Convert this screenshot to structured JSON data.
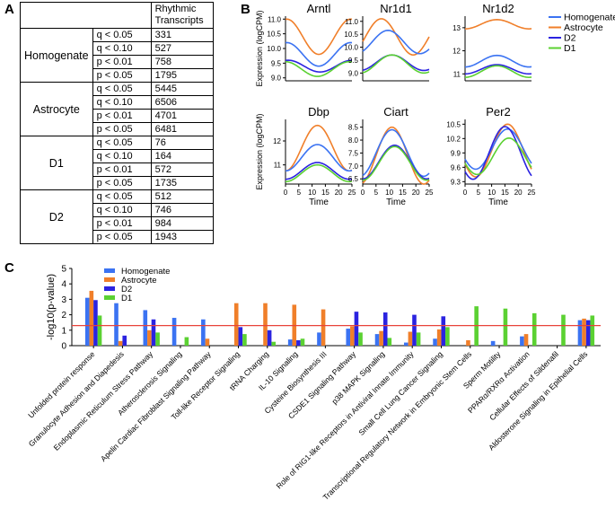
{
  "panels": {
    "a": "A",
    "b": "B",
    "c": "C"
  },
  "table": {
    "header": "Rhythmic Transcripts",
    "groups": [
      {
        "name": "Homogenate",
        "rows": [
          [
            "q < 0.05",
            "331"
          ],
          [
            "q < 0.10",
            "527"
          ],
          [
            "p < 0.01",
            "758"
          ],
          [
            "p < 0.05",
            "1795"
          ]
        ]
      },
      {
        "name": "Astrocyte",
        "rows": [
          [
            "q < 0.05",
            "5445"
          ],
          [
            "q < 0.10",
            "6506"
          ],
          [
            "p < 0.01",
            "4701"
          ],
          [
            "p < 0.05",
            "6481"
          ]
        ]
      },
      {
        "name": "D1",
        "rows": [
          [
            "q < 0.05",
            "76"
          ],
          [
            "q < 0.10",
            "164"
          ],
          [
            "p < 0.01",
            "572"
          ],
          [
            "p < 0.05",
            "1735"
          ]
        ]
      },
      {
        "name": "D2",
        "rows": [
          [
            "q < 0.05",
            "512"
          ],
          [
            "q < 0.10",
            "746"
          ],
          [
            "p < 0.01",
            "984"
          ],
          [
            "p < 0.05",
            "1943"
          ]
        ]
      }
    ]
  },
  "colors": {
    "Homogenate": "#3b73f2",
    "Astrocyte": "#f07f2a",
    "D2": "#2b23e0",
    "D1": "#5bd132",
    "threshold": "#e8433a"
  },
  "chart_data": [
    {
      "type": "line",
      "panel": "B",
      "ylabel": "Expression (logCPM)",
      "xlabel": "Time",
      "xticks": [
        0,
        5,
        10,
        15,
        20,
        25
      ],
      "xlim": [
        0,
        25
      ],
      "legend": {
        "position": "top-right",
        "entries": [
          "Homogenate",
          "Astrocyte",
          "D2",
          "D1"
        ]
      },
      "note": "series values are cosinor curves: y = mesor + amp * cos(2*pi*(t - peak)/24)",
      "subplots": [
        {
          "title": "Arntl",
          "ylim": [
            8.9,
            11.1
          ],
          "yticks": [
            "9.0",
            "9.5",
            "10.0",
            "10.5",
            "11.0"
          ],
          "series": [
            {
              "name": "Astrocyte",
              "mesor": 10.4,
              "amp": 0.6,
              "peak": 24.5
            },
            {
              "name": "Homogenate",
              "mesor": 9.8,
              "amp": 0.4,
              "peak": 0.5
            },
            {
              "name": "D2",
              "mesor": 9.4,
              "amp": 0.2,
              "peak": 1
            },
            {
              "name": "D1",
              "mesor": 9.3,
              "amp": 0.25,
              "peak": 0
            }
          ]
        },
        {
          "title": "Nr1d1",
          "ylim": [
            8.7,
            11.2
          ],
          "yticks": [
            "9.0",
            "9.5",
            "10.0",
            "10.5",
            "11.0"
          ],
          "series": [
            {
              "name": "Astrocyte",
              "mesor": 10.4,
              "amp": 0.7,
              "peak": 7
            },
            {
              "name": "Homogenate",
              "mesor": 10.2,
              "amp": 0.45,
              "peak": 9.5
            },
            {
              "name": "D2",
              "mesor": 9.4,
              "amp": 0.3,
              "peak": 11
            },
            {
              "name": "D1",
              "mesor": 9.35,
              "amp": 0.35,
              "peak": 11
            }
          ]
        },
        {
          "title": "Nr1d2",
          "ylim": [
            10.7,
            13.5
          ],
          "yticks": [
            "11",
            "12",
            "13"
          ],
          "series": [
            {
              "name": "Astrocyte",
              "mesor": 13.15,
              "amp": 0.2,
              "peak": 12
            },
            {
              "name": "Homogenate",
              "mesor": 11.55,
              "amp": 0.25,
              "peak": 12
            },
            {
              "name": "D2",
              "mesor": 11.2,
              "amp": 0.2,
              "peak": 12
            },
            {
              "name": "D1",
              "mesor": 11.1,
              "amp": 0.25,
              "peak": 12
            }
          ]
        },
        {
          "title": "Dbp",
          "ylim": [
            10.2,
            12.9
          ],
          "yticks": [
            "11",
            "12"
          ],
          "series": [
            {
              "name": "Astrocyte",
              "mesor": 11.7,
              "amp": 0.95,
              "peak": 12
            },
            {
              "name": "Homogenate",
              "mesor": 11.3,
              "amp": 0.55,
              "peak": 12
            },
            {
              "name": "D2",
              "mesor": 10.75,
              "amp": 0.35,
              "peak": 12
            },
            {
              "name": "D1",
              "mesor": 10.65,
              "amp": 0.35,
              "peak": 12
            }
          ]
        },
        {
          "title": "Ciart",
          "ylim": [
            6.3,
            8.8
          ],
          "yticks": [
            "6.5",
            "7.0",
            "7.5",
            "8.0",
            "8.5"
          ],
          "series": [
            {
              "name": "Astrocyte",
              "mesor": 7.4,
              "amp": 1.1,
              "peak": 11
            },
            {
              "name": "Homogenate",
              "mesor": 7.5,
              "amp": 0.9,
              "peak": 11
            },
            {
              "name": "D2",
              "mesor": 7.15,
              "amp": 0.65,
              "peak": 12
            },
            {
              "name": "D1",
              "mesor": 7.1,
              "amp": 0.65,
              "peak": 12
            }
          ]
        },
        {
          "title": "Per2",
          "ylim": [
            9.25,
            10.6
          ],
          "yticks": [
            "9.3",
            "9.6",
            "9.9",
            "10.2",
            "10.5"
          ],
          "series": [
            {
              "name": "Astrocyte",
              "mesor": 9.95,
              "amp": 0.55,
              "peak": 16
            },
            {
              "name": "Homogenate",
              "mesor": 9.98,
              "amp": 0.42,
              "peak": 16
            },
            {
              "name": "D2",
              "mesor": 9.9,
              "amp": 0.55,
              "peak": 15
            },
            {
              "name": "D1",
              "mesor": 9.83,
              "amp": 0.38,
              "peak": 16.5
            }
          ]
        }
      ]
    },
    {
      "type": "bar",
      "panel": "C",
      "ylabel": "-log10(p-value)",
      "ylim": [
        0,
        5
      ],
      "yticks": [
        0,
        1,
        2,
        3,
        4,
        5
      ],
      "threshold": 1.3,
      "legend": {
        "position": "top-left",
        "entries": [
          "Homogenate",
          "Astrocyte",
          "D2",
          "D1"
        ]
      },
      "categories": [
        "Unfolded protein response",
        "Granulocyte Adhesion and Diapedesis",
        "Endoplasmic Reticulum Stress Pathway",
        "Atherosclerosis Signaling",
        "Apelin Cardiac Fibroblast Signaling Pathway",
        "Toll-like Receptor Signaling",
        "tRNA Charging",
        "IL-10 Signaling",
        "Cysteine Biosynthesis III",
        "CSDE1 Signaling Pathway",
        "p38 MAPK Signaling",
        "Role of RIG1-like Receptors in Antiviral Innate Immunity",
        "Small Cell Lung Cancer Signaling",
        "Transcriptional Regulatory Network in Embryonic Stem Cells",
        "Sperm Motility",
        "PPARα/RXRα Activation",
        "Cellular Effects of Sildenafil",
        "Aldosterone Signaling in Epithelial Cells"
      ],
      "series": [
        {
          "name": "Homogenate",
          "values": [
            3.1,
            2.75,
            2.3,
            1.8,
            1.7,
            0,
            0,
            0.4,
            0.85,
            1.1,
            0.75,
            0.2,
            0.45,
            0,
            0.3,
            0.6,
            0,
            1.65
          ]
        },
        {
          "name": "Astrocyte",
          "values": [
            3.55,
            0.3,
            1.0,
            0,
            0.45,
            2.75,
            2.75,
            2.65,
            2.35,
            1.25,
            0.95,
            0.9,
            1.05,
            0.35,
            0,
            0.75,
            0,
            1.75
          ]
        },
        {
          "name": "D2",
          "values": [
            2.95,
            0.65,
            1.7,
            0,
            0,
            1.2,
            1.0,
            0.35,
            0,
            2.2,
            2.15,
            2.0,
            1.9,
            0,
            0,
            0,
            0,
            1.65
          ]
        },
        {
          "name": "D1",
          "values": [
            1.95,
            0,
            0.85,
            0.55,
            0,
            0.75,
            0.25,
            0.45,
            0,
            0.85,
            0.5,
            0.85,
            1.2,
            2.55,
            2.4,
            2.1,
            2.0,
            1.95
          ]
        }
      ]
    }
  ]
}
